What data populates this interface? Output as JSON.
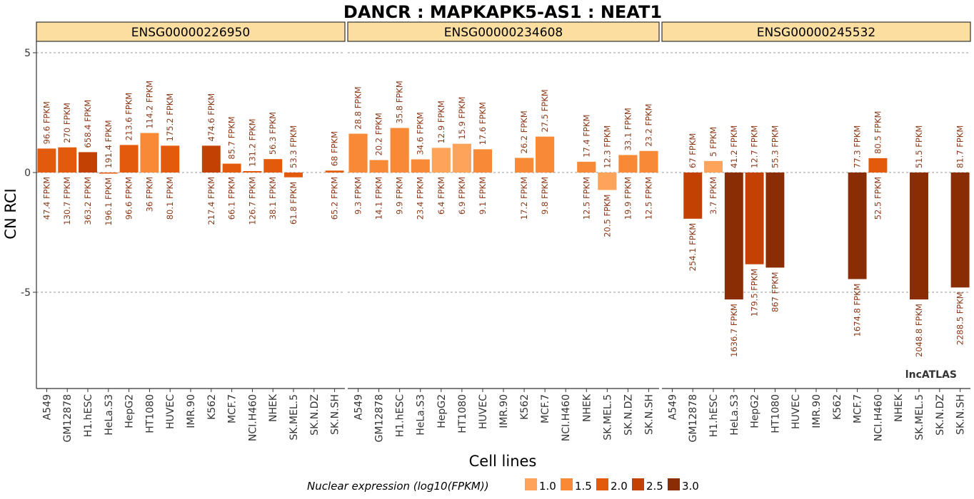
{
  "chart_data": {
    "type": "bar",
    "title": "DANCR : MAPKAPK5-AS1 : NEAT1",
    "xlabel": "Cell lines",
    "ylabel": "CN RCI",
    "ylim": [
      -9,
      6
    ],
    "yticks": [
      5,
      0,
      -5
    ],
    "ytick_labels": [
      "5",
      "0",
      "-5"
    ],
    "grid": true,
    "categories": [
      "A549",
      "GM12878",
      "H1.hESC",
      "HeLa.S3",
      "HepG2",
      "HT1080",
      "HUVEC",
      "IMR.90",
      "K562",
      "MCF.7",
      "NCI.H460",
      "NHEK",
      "SK.MEL.5",
      "SK.N.DZ",
      "SK.N.SH"
    ],
    "legend": {
      "title": "Nuclear expression (log10(FPKM))",
      "placement": "bottom",
      "levels": [
        {
          "label": "1.0",
          "color": "#fda35a"
        },
        {
          "label": "1.5",
          "color": "#f88a37"
        },
        {
          "label": "2.0",
          "color": "#e35a0c"
        },
        {
          "label": "2.5",
          "color": "#c44104"
        },
        {
          "label": "3.0",
          "color": "#8a2c04"
        }
      ]
    },
    "panels": [
      {
        "name": "ENSG00000226950",
        "values": [
          1.0,
          1.05,
          0.85,
          -0.03,
          1.15,
          1.65,
          1.12,
          null,
          1.12,
          0.37,
          0.06,
          0.56,
          -0.2,
          null,
          0.08
        ],
        "nuclear_labels": [
          "96.6 FPKM",
          "270 FPKM",
          "658.4 FPKM",
          "191.4 FPKM",
          "213.6 FPKM",
          "114.2 FPKM",
          "175.2 FPKM",
          "",
          "474.6 FPKM",
          "85.7 FPKM",
          "131.2 FPKM",
          "56.3 FPKM",
          "53.3 FPKM",
          "",
          "68 FPKM"
        ],
        "cytoplasm_labels": [
          "47.4 FPKM",
          "130.7 FPKM",
          "363.2 FPKM",
          "196.1 FPKM",
          "96.6 FPKM",
          "36 FPKM",
          "80.1 FPKM",
          "",
          "217.4 FPKM",
          "66.1 FPKM",
          "126.7 FPKM",
          "38.1 FPKM",
          "61.8 FPKM",
          "",
          "65.2 FPKM"
        ],
        "color_levels": [
          2.0,
          2.0,
          2.5,
          2.0,
          2.0,
          1.5,
          2.0,
          null,
          2.5,
          2.0,
          2.0,
          2.0,
          2.0,
          null,
          2.0
        ]
      },
      {
        "name": "ENSG00000234608",
        "values": [
          1.62,
          0.52,
          1.86,
          0.55,
          1.03,
          1.2,
          0.97,
          null,
          0.61,
          1.5,
          null,
          0.45,
          -0.73,
          0.73,
          0.9
        ],
        "nuclear_labels": [
          "28.8 FPKM",
          "20.2 FPKM",
          "35.8 FPKM",
          "34.6 FPKM",
          "12.9 FPKM",
          "15.9 FPKM",
          "17.6 FPKM",
          "",
          "26.2 FPKM",
          "27.5 FPKM",
          "",
          "17.4 FPKM",
          "12.3 FPKM",
          "33.1 FPKM",
          "23.2 FPKM"
        ],
        "cytoplasm_labels": [
          "9.3 FPKM",
          "14.1 FPKM",
          "9.9 FPKM",
          "23.4 FPKM",
          "6.4 FPKM",
          "6.9 FPKM",
          "9.1 FPKM",
          "",
          "17.2 FPKM",
          "9.8 FPKM",
          "",
          "12.5 FPKM",
          "20.5 FPKM",
          "19.9 FPKM",
          "12.5 FPKM"
        ],
        "color_levels": [
          1.5,
          1.5,
          1.5,
          1.5,
          1.0,
          1.0,
          1.5,
          null,
          1.5,
          1.5,
          null,
          1.5,
          1.0,
          1.5,
          1.5
        ]
      },
      {
        "name": "ENSG00000245532",
        "values": [
          null,
          -1.93,
          0.48,
          -5.3,
          -3.83,
          -3.97,
          null,
          null,
          null,
          -4.45,
          0.6,
          null,
          -5.3,
          null,
          -4.8
        ],
        "nuclear_labels": [
          "",
          "67 FPKM",
          "5 FPKM",
          "41.2 FPKM",
          "12.7 FPKM",
          "55.3 FPKM",
          "",
          "",
          "",
          "77.3 FPKM",
          "80.5 FPKM",
          "",
          "51.5 FPKM",
          "",
          "81.7 FPKM"
        ],
        "cytoplasm_labels": [
          "",
          "254.1 FPKM",
          "3.7 FPKM",
          "1636.7 FPKM",
          "179.5 FPKM",
          "867 FPKM",
          "",
          "",
          "",
          "1674.8 FPKM",
          "52.5 FPKM",
          "",
          "2048.8 FPKM",
          "",
          "2288.5 FPKM"
        ],
        "color_levels": [
          null,
          2.5,
          1.0,
          3.0,
          2.5,
          3.0,
          null,
          null,
          null,
          3.0,
          2.0,
          null,
          3.0,
          null,
          3.0
        ]
      }
    ],
    "watermark": "lncATLAS"
  }
}
